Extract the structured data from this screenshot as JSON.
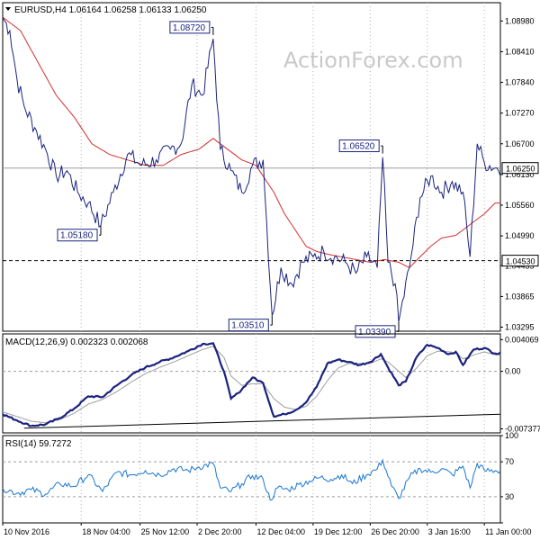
{
  "watermark": "ActionForex.com",
  "colors": {
    "price": "#1a237e",
    "ma": "#d32f2f",
    "macd": "#1a237e",
    "signal": "#9e9e9e",
    "rsi": "#1976d2",
    "grid": "#b0b0b0"
  },
  "chart_data": [
    {
      "type": "line",
      "panel": "price",
      "header": {
        "symbol": "EURUSD,H4",
        "open": "1.06164",
        "high": "1.06258",
        "low": "1.06133",
        "close": "1.06250",
        "text": "EURUSD,H4  1.06164  1.06258  1.06133  1.06250"
      },
      "ylim": [
        1.0322,
        1.0932
      ],
      "y_ticks": [
        "1.08980",
        "1.08410",
        "1.07840",
        "1.07270",
        "1.06700",
        "1.06130",
        "1.05560",
        "1.04990",
        "1.04435",
        "1.03865",
        "1.03295"
      ],
      "current_price_label": "1.06250",
      "current_price": 1.0625,
      "support_level_label": "1.04530",
      "support_level": 1.0453,
      "x_tick_labels": [
        "10 Nov 2016",
        "18 Nov 04:00",
        "25 Nov 12:00",
        "2 Dec 20:00",
        "12 Dec 04:00",
        "19 Dec 12:00",
        "26 Dec 20:00",
        "3 Jan 16:00",
        "11 Jan 00:00"
      ],
      "x_tick_positions": [
        0,
        44,
        77,
        109,
        142,
        174,
        206,
        238,
        270
      ],
      "x_range": [
        0,
        279
      ],
      "annotations": [
        {
          "label": "1.08720",
          "x": 118,
          "y": 1.0872,
          "side": "above"
        },
        {
          "label": "1.05180",
          "x": 55,
          "y": 1.0518,
          "side": "below"
        },
        {
          "label": "1.06520",
          "x": 213,
          "y": 1.0652,
          "side": "above"
        },
        {
          "label": "1.03510",
          "x": 151,
          "y": 1.0351,
          "side": "below"
        },
        {
          "label": "1.03390",
          "x": 222,
          "y": 1.0339,
          "side": "below"
        }
      ],
      "series": [
        {
          "key": "close",
          "anchors": [
            [
              0,
              1.0905
            ],
            [
              4,
              1.088
            ],
            [
              8,
              1.079
            ],
            [
              12,
              1.074
            ],
            [
              18,
              1.07
            ],
            [
              24,
              1.066
            ],
            [
              30,
              1.061
            ],
            [
              36,
              1.062
            ],
            [
              42,
              1.058
            ],
            [
              48,
              1.056
            ],
            [
              55,
              1.0518
            ],
            [
              62,
              1.058
            ],
            [
              70,
              1.065
            ],
            [
              78,
              1.063
            ],
            [
              86,
              1.064
            ],
            [
              94,
              1.066
            ],
            [
              100,
              1.067
            ],
            [
              106,
              1.078
            ],
            [
              112,
              1.076
            ],
            [
              118,
              1.0865
            ],
            [
              122,
              1.066
            ],
            [
              128,
              1.062
            ],
            [
              134,
              1.058
            ],
            [
              140,
              1.063
            ],
            [
              146,
              1.064
            ],
            [
              151,
              1.0351
            ],
            [
              156,
              1.044
            ],
            [
              162,
              1.041
            ],
            [
              168,
              1.045
            ],
            [
              174,
              1.046
            ],
            [
              180,
              1.047
            ],
            [
              186,
              1.046
            ],
            [
              192,
              1.045
            ],
            [
              198,
              1.043
            ],
            [
              204,
              1.046
            ],
            [
              210,
              1.044
            ],
            [
              213,
              1.0645
            ],
            [
              216,
              1.045
            ],
            [
              220,
              1.041
            ],
            [
              222,
              1.0339
            ],
            [
              228,
              1.044
            ],
            [
              234,
              1.057
            ],
            [
              240,
              1.061
            ],
            [
              246,
              1.058
            ],
            [
              252,
              1.06
            ],
            [
              258,
              1.058
            ],
            [
              262,
              1.046
            ],
            [
              266,
              1.067
            ],
            [
              270,
              1.0635
            ],
            [
              276,
              1.0625
            ]
          ]
        },
        {
          "key": "ma",
          "anchors": [
            [
              0,
              1.0905
            ],
            [
              10,
              1.088
            ],
            [
              20,
              1.082
            ],
            [
              30,
              1.076
            ],
            [
              40,
              1.072
            ],
            [
              50,
              1.067
            ],
            [
              60,
              1.065
            ],
            [
              70,
              1.064
            ],
            [
              80,
              1.063
            ],
            [
              90,
              1.063
            ],
            [
              100,
              1.065
            ],
            [
              110,
              1.066
            ],
            [
              118,
              1.068
            ],
            [
              126,
              1.066
            ],
            [
              134,
              1.064
            ],
            [
              142,
              1.063
            ],
            [
              146,
              1.061
            ],
            [
              152,
              1.058
            ],
            [
              158,
              1.054
            ],
            [
              164,
              1.051
            ],
            [
              170,
              1.048
            ],
            [
              176,
              1.047
            ],
            [
              182,
              1.0465
            ],
            [
              190,
              1.046
            ],
            [
              198,
              1.0455
            ],
            [
              206,
              1.045
            ],
            [
              214,
              1.0455
            ],
            [
              222,
              1.045
            ],
            [
              228,
              1.044
            ],
            [
              234,
              1.046
            ],
            [
              240,
              1.048
            ],
            [
              246,
              1.0495
            ],
            [
              254,
              1.05
            ],
            [
              262,
              1.052
            ],
            [
              270,
              1.054
            ],
            [
              276,
              1.056
            ]
          ]
        }
      ]
    },
    {
      "type": "line",
      "panel": "macd",
      "header": {
        "text": "MACD(12,26,9)  0.002323  0.002068"
      },
      "ylim": [
        -0.0079,
        0.0048
      ],
      "y_tick_labels": [
        "0.004069",
        "0.00",
        "-0.007377"
      ],
      "y_tick_values": [
        0.004069,
        0.0,
        -0.007377
      ],
      "trendline": [
        [
          12,
          -0.0073
        ],
        [
          279,
          -0.0055
        ]
      ],
      "series": [
        {
          "key": "macd",
          "anchors": [
            [
              0,
              -0.0055
            ],
            [
              8,
              -0.0063
            ],
            [
              16,
              -0.007
            ],
            [
              24,
              -0.0068
            ],
            [
              32,
              -0.006
            ],
            [
              40,
              -0.0048
            ],
            [
              48,
              -0.0032
            ],
            [
              56,
              -0.0033
            ],
            [
              64,
              -0.0018
            ],
            [
              72,
              -0.0005
            ],
            [
              80,
              0.0005
            ],
            [
              88,
              0.0012
            ],
            [
              96,
              0.0018
            ],
            [
              104,
              0.0026
            ],
            [
              112,
              0.0035
            ],
            [
              118,
              0.0036
            ],
            [
              124,
              0.0
            ],
            [
              128,
              -0.0035
            ],
            [
              132,
              -0.0028
            ],
            [
              140,
              -0.0008
            ],
            [
              146,
              -0.0015
            ],
            [
              152,
              -0.0058
            ],
            [
              158,
              -0.0055
            ],
            [
              164,
              -0.005
            ],
            [
              170,
              -0.004
            ],
            [
              176,
              -0.002
            ],
            [
              182,
              0.001
            ],
            [
              188,
              0.0015
            ],
            [
              194,
              0.0012
            ],
            [
              200,
              0.0008
            ],
            [
              206,
              0.0012
            ],
            [
              212,
              0.0022
            ],
            [
              216,
              0.0005
            ],
            [
              222,
              -0.0018
            ],
            [
              226,
              -0.0013
            ],
            [
              232,
              0.0018
            ],
            [
              238,
              0.0034
            ],
            [
              244,
              0.003
            ],
            [
              250,
              0.0022
            ],
            [
              254,
              0.0025
            ],
            [
              258,
              0.0008
            ],
            [
              264,
              0.0028
            ],
            [
              270,
              0.003
            ],
            [
              276,
              0.0023
            ]
          ]
        },
        {
          "key": "signal",
          "anchors": [
            [
              0,
              -0.0052
            ],
            [
              8,
              -0.0058
            ],
            [
              16,
              -0.0064
            ],
            [
              24,
              -0.0066
            ],
            [
              32,
              -0.0062
            ],
            [
              40,
              -0.0054
            ],
            [
              48,
              -0.0042
            ],
            [
              56,
              -0.0036
            ],
            [
              64,
              -0.0026
            ],
            [
              72,
              -0.0014
            ],
            [
              80,
              -0.0003
            ],
            [
              88,
              0.0005
            ],
            [
              96,
              0.0012
            ],
            [
              104,
              0.002
            ],
            [
              112,
              0.0028
            ],
            [
              118,
              0.0032
            ],
            [
              124,
              0.0018
            ],
            [
              128,
              -0.0006
            ],
            [
              134,
              -0.0018
            ],
            [
              140,
              -0.0016
            ],
            [
              146,
              -0.0016
            ],
            [
              152,
              -0.0035
            ],
            [
              158,
              -0.0046
            ],
            [
              164,
              -0.0049
            ],
            [
              170,
              -0.0045
            ],
            [
              176,
              -0.0032
            ],
            [
              182,
              -0.0012
            ],
            [
              188,
              0.0004
            ],
            [
              194,
              0.001
            ],
            [
              200,
              0.001
            ],
            [
              206,
              0.001
            ],
            [
              212,
              0.0016
            ],
            [
              216,
              0.0012
            ],
            [
              222,
              0.0
            ],
            [
              226,
              -0.0008
            ],
            [
              232,
              0.0004
            ],
            [
              238,
              0.002
            ],
            [
              244,
              0.0026
            ],
            [
              250,
              0.0025
            ],
            [
              254,
              0.0024
            ],
            [
              258,
              0.0016
            ],
            [
              264,
              0.0021
            ],
            [
              270,
              0.0025
            ],
            [
              276,
              0.0021
            ]
          ]
        }
      ]
    },
    {
      "type": "line",
      "panel": "rsi",
      "header": {
        "text": "RSI(14) 59.7272"
      },
      "ylim": [
        0,
        100
      ],
      "y_tick_labels": [
        "100",
        "70",
        "30",
        "0"
      ],
      "y_tick_values": [
        100,
        70,
        30,
        0
      ],
      "levels": [
        70,
        30
      ],
      "series": [
        {
          "key": "rsi",
          "anchors": [
            [
              0,
              40
            ],
            [
              8,
              34
            ],
            [
              16,
              38
            ],
            [
              24,
              33
            ],
            [
              32,
              45
            ],
            [
              40,
              42
            ],
            [
              48,
              55
            ],
            [
              56,
              36
            ],
            [
              64,
              58
            ],
            [
              72,
              55
            ],
            [
              80,
              60
            ],
            [
              88,
              55
            ],
            [
              96,
              62
            ],
            [
              104,
              60
            ],
            [
              110,
              64
            ],
            [
              118,
              68
            ],
            [
              122,
              40
            ],
            [
              128,
              36
            ],
            [
              134,
              45
            ],
            [
              140,
              54
            ],
            [
              146,
              50
            ],
            [
              150,
              26
            ],
            [
              154,
              40
            ],
            [
              160,
              38
            ],
            [
              166,
              44
            ],
            [
              172,
              48
            ],
            [
              178,
              52
            ],
            [
              184,
              50
            ],
            [
              190,
              55
            ],
            [
              196,
              45
            ],
            [
              204,
              55
            ],
            [
              210,
              62
            ],
            [
              213,
              72
            ],
            [
              218,
              42
            ],
            [
              222,
              28
            ],
            [
              228,
              52
            ],
            [
              234,
              62
            ],
            [
              240,
              58
            ],
            [
              246,
              62
            ],
            [
              252,
              55
            ],
            [
              258,
              65
            ],
            [
              262,
              40
            ],
            [
              266,
              68
            ],
            [
              270,
              60
            ],
            [
              276,
              59.7
            ]
          ]
        }
      ]
    }
  ]
}
